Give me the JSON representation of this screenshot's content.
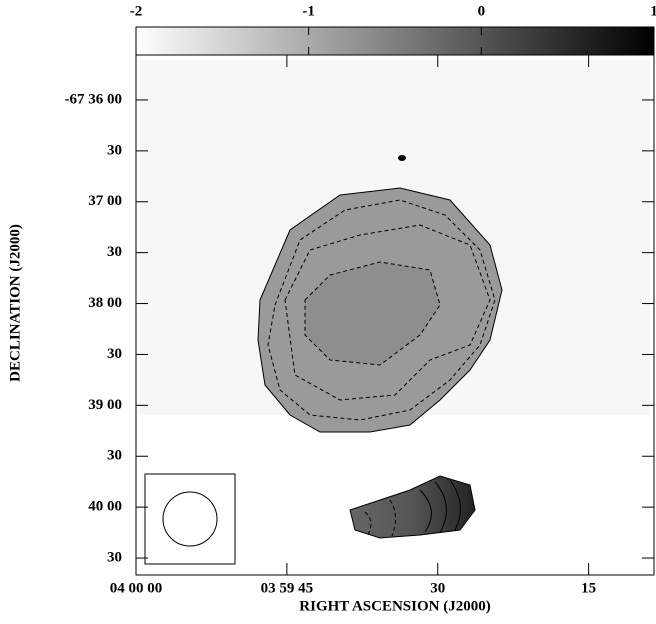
{
  "chart_data": {
    "type": "image",
    "xlabel": "RIGHT ASCENSION (J2000)",
    "ylabel": "DECLINATION (J2000)",
    "xlim": [
      14400,
      14348.5
    ],
    "xticks": [
      {
        "value": 14400,
        "label": "04 00 00"
      },
      {
        "value": 14385,
        "label": "03 59 45"
      },
      {
        "value": 14370,
        "label": "30"
      },
      {
        "value": 14355,
        "label": "15"
      }
    ],
    "ylim": [
      -243640,
      -243333.5
    ],
    "yticks": [
      {
        "value": -243360,
        "label": "-67 36 00"
      },
      {
        "value": -243390,
        "label": "30"
      },
      {
        "value": -243420,
        "label": "37 00"
      },
      {
        "value": -243450,
        "label": "30"
      },
      {
        "value": -243480,
        "label": "38 00"
      },
      {
        "value": -243510,
        "label": "30"
      },
      {
        "value": -243540,
        "label": "39 00"
      },
      {
        "value": -243570,
        "label": "30"
      },
      {
        "value": -243600,
        "label": "40 00"
      },
      {
        "value": -243630,
        "label": "30"
      }
    ],
    "colorbar": {
      "lim": [
        -2,
        1
      ],
      "ticks": [
        -2,
        -1,
        0,
        1
      ],
      "colors": [
        "#ffffff",
        "#000000"
      ]
    }
  }
}
